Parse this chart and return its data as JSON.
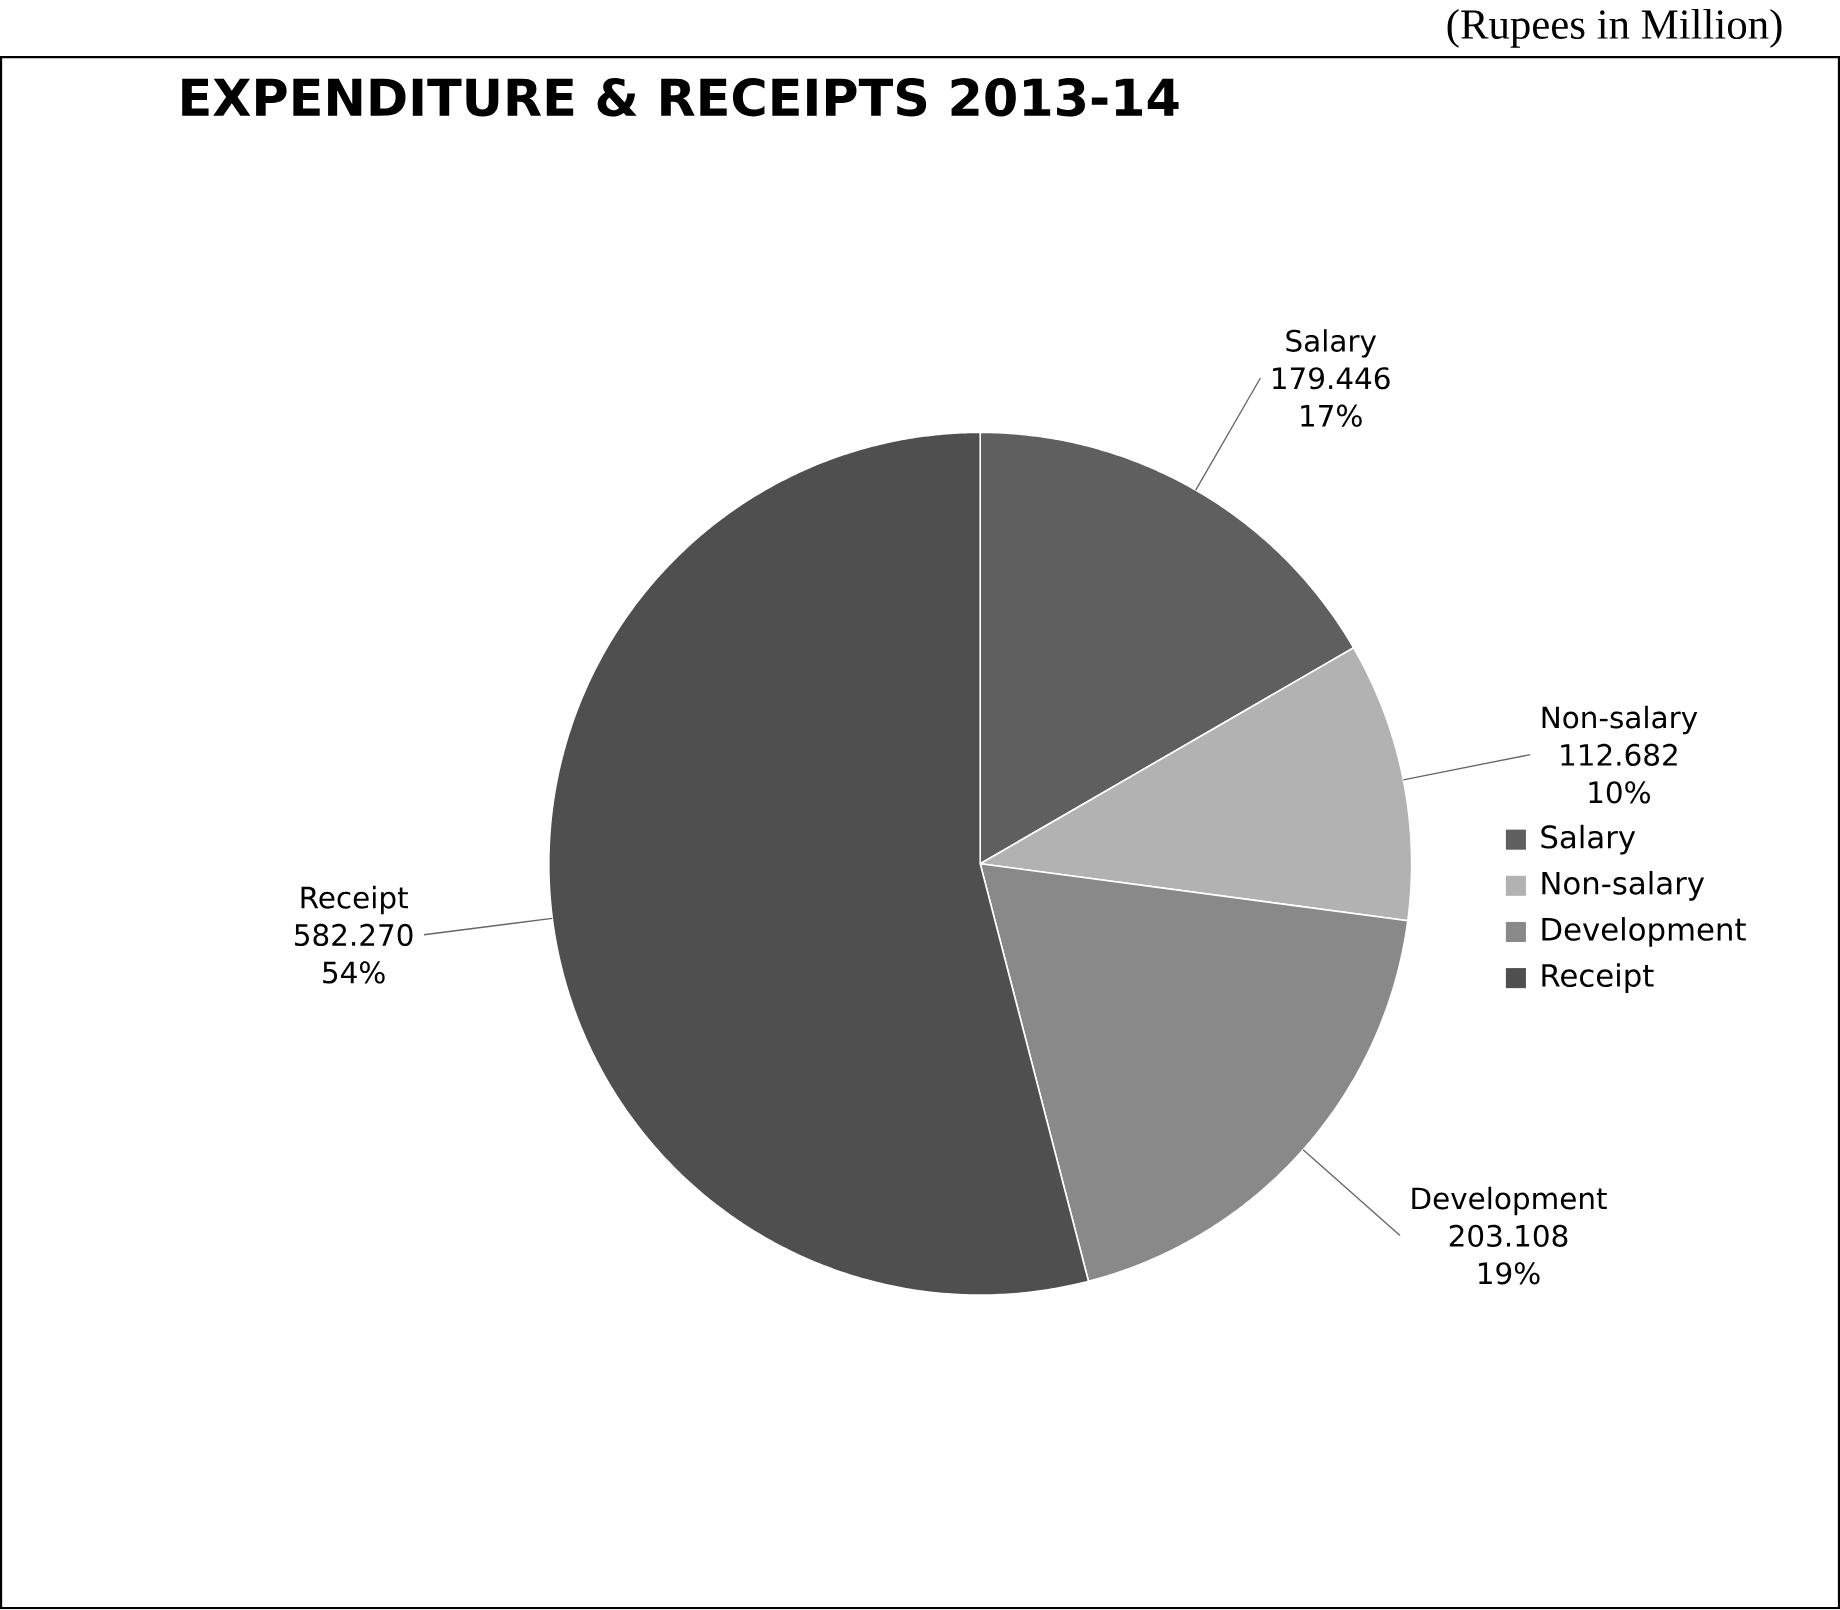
{
  "chart_data": {
    "type": "pie",
    "title": "EXPENDITURE & RECEIPTS 2013-14",
    "subtitle": "(Rupees in Million)",
    "categories": [
      "Salary",
      "Non-salary",
      "Development",
      "Receipt"
    ],
    "values": [
      179.446,
      112.682,
      203.108,
      582.27
    ],
    "value_labels": [
      "179.446",
      "112.682",
      "203.108",
      "582.270"
    ],
    "colors": [
      "#5f5f5f",
      "#b2b2b2",
      "#898989",
      "#4f4f4f"
    ],
    "legend": "right",
    "annotations": [
      "17%",
      "10%",
      "19%",
      "54%"
    ]
  }
}
